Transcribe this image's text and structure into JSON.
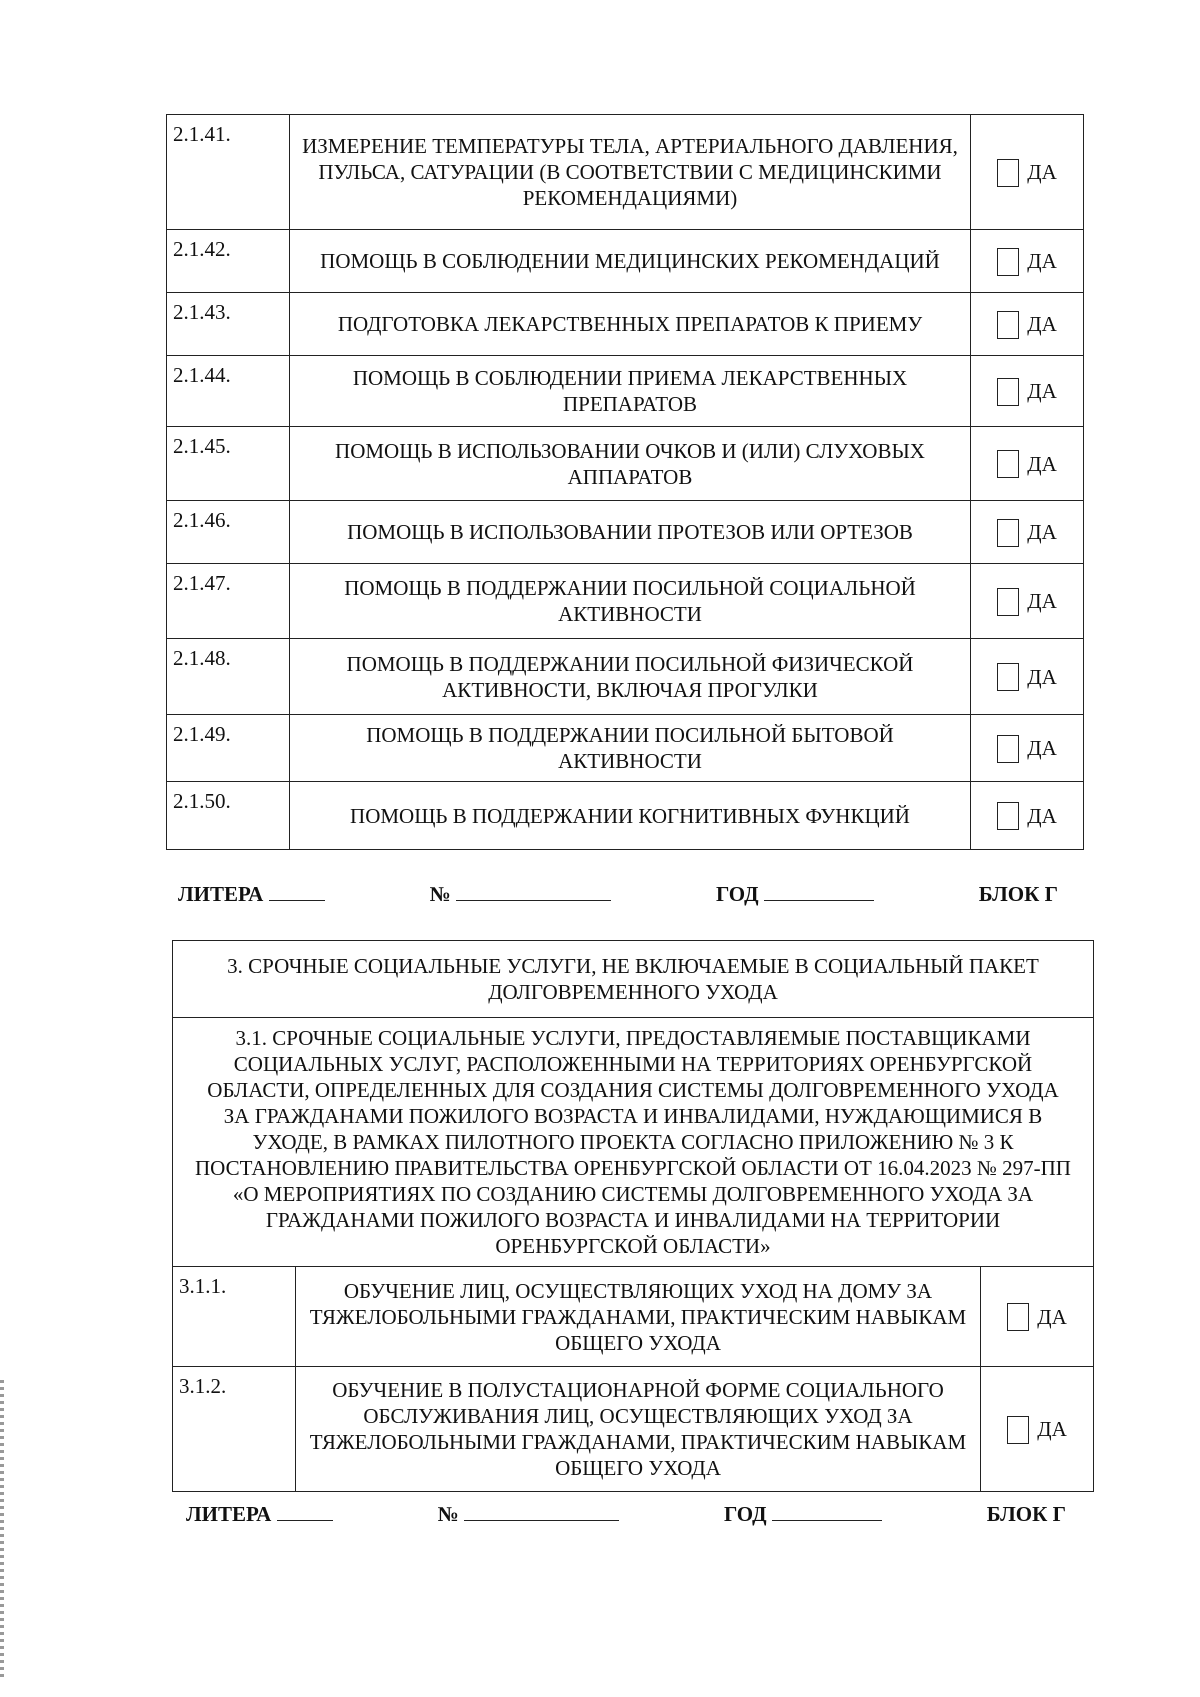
{
  "block1": {
    "rows": [
      {
        "num": "2.1.41.",
        "text": "ИЗМЕРЕНИЕ ТЕМПЕРАТУРЫ ТЕЛА, АРТЕРИАЛЬНОГО ДАВЛЕНИЯ, ПУЛЬСА, САТУРАЦИИ (В СООТВЕТСТВИИ С МЕДИЦИНСКИМИ РЕКОМЕНДАЦИЯМИ)",
        "yes": "ДА"
      },
      {
        "num": "2.1.42.",
        "text": "ПОМОЩЬ В СОБЛЮДЕНИИ МЕДИЦИНСКИХ РЕКОМЕНДАЦИЙ",
        "yes": "ДА"
      },
      {
        "num": "2.1.43.",
        "text": "ПОДГОТОВКА ЛЕКАРСТВЕННЫХ ПРЕПАРАТОВ К ПРИЕМУ",
        "yes": "ДА"
      },
      {
        "num": "2.1.44.",
        "text": "ПОМОЩЬ В СОБЛЮДЕНИИ ПРИЕМА ЛЕКАРСТВЕННЫХ ПРЕПАРАТОВ",
        "yes": "ДА"
      },
      {
        "num": "2.1.45.",
        "text": "ПОМОЩЬ В ИСПОЛЬЗОВАНИИ ОЧКОВ И (ИЛИ) СЛУХОВЫХ АППАРАТОВ",
        "yes": "ДА"
      },
      {
        "num": "2.1.46.",
        "text": "ПОМОЩЬ В ИСПОЛЬЗОВАНИИ ПРОТЕЗОВ ИЛИ ОРТЕЗОВ",
        "yes": "ДА"
      },
      {
        "num": "2.1.47.",
        "text": "ПОМОЩЬ В ПОДДЕРЖАНИИ ПОСИЛЬНОЙ СОЦИАЛЬНОЙ АКТИВНОСТИ",
        "yes": "ДА"
      },
      {
        "num": "2.1.48.",
        "text": "ПОМОЩЬ В ПОДДЕРЖАНИИ ПОСИЛЬНОЙ ФИЗИЧЕСКОЙ АКТИВНОСТИ, ВКЛЮЧАЯ ПРОГУЛКИ",
        "yes": "ДА"
      },
      {
        "num": "2.1.49.",
        "text": "ПОМОЩЬ В ПОДДЕРЖАНИИ ПОСИЛЬНОЙ БЫТОВОЙ АКТИВНОСТИ",
        "yes": "ДА"
      },
      {
        "num": "2.1.50.",
        "text": "ПОМОЩЬ В ПОДДЕРЖАНИИ КОГНИТИВНЫХ ФУНКЦИЙ",
        "yes": "ДА"
      }
    ]
  },
  "footer": {
    "litera": "ЛИТЕРА",
    "number": "№",
    "year": "ГОД",
    "block": "БЛОК Г"
  },
  "block2": {
    "section": "3. СРОЧНЫЕ СОЦИАЛЬНЫЕ УСЛУГИ, НЕ ВКЛЮЧАЕМЫЕ В СОЦИАЛЬНЫЙ ПАКЕТ ДОЛГОВРЕМЕННОГО УХОДА",
    "subsection": "3.1. СРОЧНЫЕ СОЦИАЛЬНЫЕ УСЛУГИ, ПРЕДОСТАВЛЯЕМЫЕ ПОСТАВЩИКАМИ СОЦИАЛЬНЫХ УСЛУГ, РАСПОЛОЖЕННЫМИ НА ТЕРРИТОРИЯХ ОРЕНБУРГСКОЙ ОБЛАСТИ, ОПРЕДЕЛЕННЫХ ДЛЯ СОЗДАНИЯ СИСТЕМЫ ДОЛГОВРЕМЕННОГО УХОДА ЗА ГРАЖДАНАМИ ПОЖИЛОГО ВОЗРАСТА И ИНВАЛИДАМИ, НУЖДАЮЩИМИСЯ В УХОДЕ, В РАМКАХ ПИЛОТНОГО ПРОЕКТА СОГЛАСНО ПРИЛОЖЕНИЮ № 3 К ПОСТАНОВЛЕНИЮ ПРАВИТЕЛЬСТВА ОРЕНБУРГСКОЙ ОБЛАСТИ ОТ 16.04.2023 № 297-ПП «О МЕРОПРИЯТИЯХ ПО СОЗДАНИЮ СИСТЕМЫ ДОЛГОВРЕМЕННОГО УХОДА ЗА ГРАЖДАНАМИ ПОЖИЛОГО ВОЗРАСТА И ИНВАЛИДАМИ НА ТЕРРИТОРИИ ОРЕНБУРГСКОЙ ОБЛАСТИ»",
    "rows": [
      {
        "num": "3.1.1.",
        "text": "ОБУЧЕНИЕ ЛИЦ, ОСУЩЕСТВЛЯЮЩИХ УХОД НА ДОМУ ЗА ТЯЖЕЛОБОЛЬНЫМИ ГРАЖДАНАМИ, ПРАКТИЧЕСКИМ НАВЫКАМ ОБЩЕГО УХОДА",
        "yes": "ДА"
      },
      {
        "num": "3.1.2.",
        "text": "ОБУЧЕНИЕ В ПОЛУСТАЦИОНАРНОЙ ФОРМЕ СОЦИАЛЬНОГО ОБСЛУЖИВАНИЯ ЛИЦ, ОСУЩЕСТВЛЯЮЩИХ УХОД ЗА ТЯЖЕЛОБОЛЬНЫМИ ГРАЖДАНАМИ, ПРАКТИЧЕСКИМ НАВЫКАМ ОБЩЕГО УХОДА",
        "yes": "ДА"
      }
    ]
  }
}
